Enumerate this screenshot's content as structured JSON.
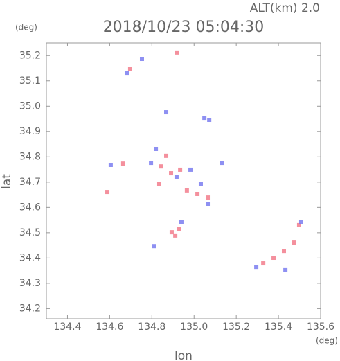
{
  "chart_data": {
    "type": "scatter",
    "title": "2018/10/23 05:04:30",
    "subtitle": "ALT(km) 2.0",
    "x_label": "lon",
    "y_label": "lat",
    "x_unit": "(deg)",
    "y_unit": "(deg)",
    "xlim": [
      134.3,
      135.6
    ],
    "ylim": [
      34.16,
      35.25
    ],
    "xticks": [
      134.4,
      134.6,
      134.8,
      {
        "value": 135,
        "label": "135.0"
      },
      135.2,
      135.4,
      135.6
    ],
    "yticks": [
      34.2,
      34.3,
      34.4,
      34.5,
      34.6,
      34.7,
      34.8,
      34.9,
      {
        "value": 35,
        "label": "35.0"
      },
      35.1,
      35.2
    ],
    "series": [
      {
        "color": "#f27c8c",
        "x": [
          134.92,
          134.697,
          134.589,
          134.664,
          134.842,
          134.891,
          134.934,
          134.966,
          135.016,
          134.927,
          134.894,
          134.911,
          135.328,
          135.377,
          135.426,
          135.475,
          135.498,
          135.065,
          134.868,
          134.835
        ],
        "y": [
          35.212,
          35.146,
          34.661,
          34.773,
          34.762,
          34.735,
          34.749,
          34.667,
          34.653,
          34.516,
          34.502,
          34.489,
          34.379,
          34.401,
          34.428,
          34.461,
          34.53,
          34.639,
          34.804,
          34.694
        ]
      },
      {
        "color": "#7a7cf0",
        "x": [
          134.753,
          134.681,
          134.868,
          135.049,
          135.072,
          134.819,
          134.796,
          134.605,
          134.917,
          134.983,
          135.032,
          135.131,
          135.065,
          134.94,
          135.295,
          135.433,
          135.508,
          134.809
        ],
        "y": [
          35.187,
          35.132,
          34.976,
          34.954,
          34.946,
          34.831,
          34.776,
          34.768,
          34.721,
          34.749,
          34.694,
          34.776,
          34.612,
          34.543,
          34.365,
          34.352,
          34.543,
          34.447
        ]
      }
    ]
  }
}
